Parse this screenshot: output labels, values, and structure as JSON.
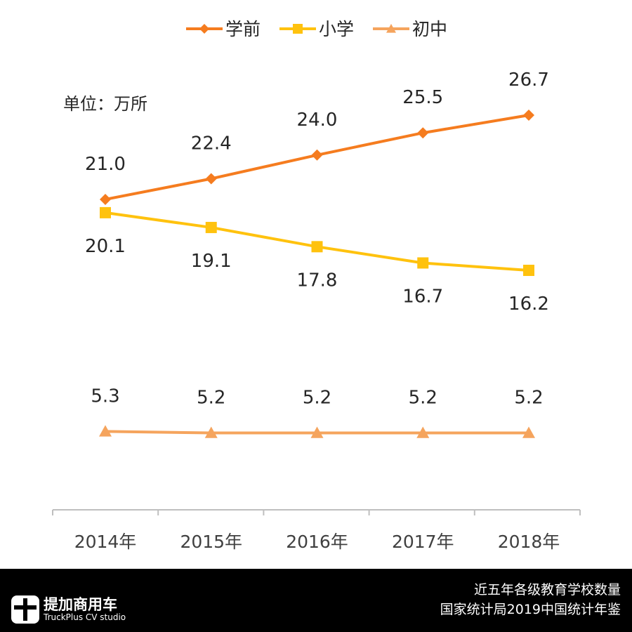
{
  "chart_data": {
    "type": "line",
    "unit_label": "单位：万所",
    "categories": [
      "2014年",
      "2015年",
      "2016年",
      "2017年",
      "2018年"
    ],
    "ylim": [
      0,
      35
    ],
    "grid": false,
    "legend_position": "top",
    "series": [
      {
        "name": "学前",
        "color": "#F57C1F",
        "marker": "diamond",
        "values": [
          21.0,
          22.4,
          24.0,
          25.5,
          26.7
        ],
        "labels": [
          "21.0",
          "22.4",
          "24.0",
          "25.5",
          "26.7"
        ],
        "label_position": "above"
      },
      {
        "name": "小学",
        "color": "#FFC20E",
        "marker": "square",
        "values": [
          20.1,
          19.1,
          17.8,
          16.7,
          16.2
        ],
        "labels": [
          "20.1",
          "19.1",
          "17.8",
          "16.7",
          "16.2"
        ],
        "label_position": "below"
      },
      {
        "name": "初中",
        "color": "#F5A45D",
        "marker": "triangle",
        "values": [
          5.3,
          5.2,
          5.2,
          5.2,
          5.2
        ],
        "labels": [
          "5.3",
          "5.2",
          "5.2",
          "5.2",
          "5.2"
        ],
        "label_position": "above"
      }
    ]
  },
  "footer": {
    "logo_cn": "提加商用车",
    "logo_en": "TruckPlus CV studio",
    "source_line1": "近五年各级教育学校数量",
    "source_line2": "国家统计局2019中国统计年鉴"
  }
}
